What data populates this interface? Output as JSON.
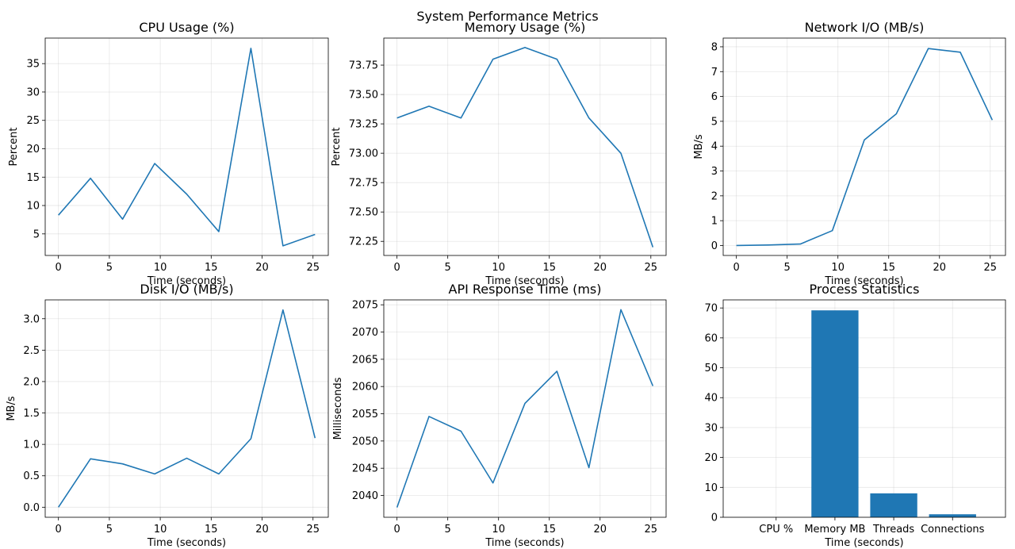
{
  "suptitle": "System Performance Metrics",
  "chart_data": [
    {
      "type": "line",
      "title": "CPU Usage (%)",
      "xlabel": "Time (seconds)",
      "ylabel": "Percent",
      "color": "#1f77b4",
      "x": [
        0,
        3.15,
        6.3,
        9.45,
        12.6,
        15.75,
        18.9,
        22.05,
        25.2
      ],
      "y": [
        8.3,
        14.8,
        7.6,
        17.4,
        12.0,
        5.4,
        37.7,
        2.9,
        4.9
      ],
      "xlim": [
        -1.3,
        26.5
      ],
      "ylim": [
        1.2,
        39.5
      ],
      "xticks": [
        0,
        5,
        10,
        15,
        20,
        25
      ],
      "yticks": [
        5,
        10,
        15,
        20,
        25,
        30,
        35
      ],
      "ytick_labels": [
        "5",
        "10",
        "15",
        "20",
        "25",
        "30",
        "35"
      ],
      "grid": true
    },
    {
      "type": "line",
      "title": "Memory Usage (%)",
      "xlabel": "Time (seconds)",
      "ylabel": "Percent",
      "color": "#1f77b4",
      "x": [
        0,
        3.15,
        6.3,
        9.45,
        12.6,
        15.75,
        18.9,
        22.05,
        25.2
      ],
      "y": [
        73.3,
        73.4,
        73.3,
        73.8,
        73.9,
        73.8,
        73.3,
        73.0,
        72.2
      ],
      "xlim": [
        -1.3,
        26.5
      ],
      "ylim": [
        72.13,
        73.98
      ],
      "xticks": [
        0,
        5,
        10,
        15,
        20,
        25
      ],
      "yticks": [
        72.25,
        72.5,
        72.75,
        73.0,
        73.25,
        73.5,
        73.75
      ],
      "ytick_labels": [
        "72.25",
        "72.50",
        "72.75",
        "73.00",
        "73.25",
        "73.50",
        "73.75"
      ],
      "grid": true
    },
    {
      "type": "line",
      "title": "Network I/O (MB/s)",
      "xlabel": "Time (seconds)",
      "ylabel": "MB/s",
      "color": "#1f77b4",
      "x": [
        0,
        3.15,
        6.3,
        9.45,
        12.6,
        15.75,
        18.9,
        22.05,
        25.2
      ],
      "y": [
        0.0,
        0.02,
        0.06,
        0.6,
        4.25,
        5.3,
        7.93,
        7.78,
        5.05
      ],
      "xlim": [
        -1.3,
        26.5
      ],
      "ylim": [
        -0.4,
        8.35
      ],
      "xticks": [
        0,
        5,
        10,
        15,
        20,
        25
      ],
      "yticks": [
        0,
        1,
        2,
        3,
        4,
        5,
        6,
        7,
        8
      ],
      "ytick_labels": [
        "0",
        "1",
        "2",
        "3",
        "4",
        "5",
        "6",
        "7",
        "8"
      ],
      "grid": true
    },
    {
      "type": "line",
      "title": "Disk I/O (MB/s)",
      "xlabel": "Time (seconds)",
      "ylabel": "MB/s",
      "color": "#1f77b4",
      "x": [
        0,
        3.15,
        6.3,
        9.45,
        12.6,
        15.75,
        18.9,
        22.05,
        25.2
      ],
      "y": [
        0.0,
        0.77,
        0.69,
        0.53,
        0.78,
        0.53,
        1.09,
        3.14,
        1.1
      ],
      "xlim": [
        -1.3,
        26.5
      ],
      "ylim": [
        -0.16,
        3.3
      ],
      "xticks": [
        0,
        5,
        10,
        15,
        20,
        25
      ],
      "yticks": [
        0.0,
        0.5,
        1.0,
        1.5,
        2.0,
        2.5,
        3.0
      ],
      "ytick_labels": [
        "0.0",
        "0.5",
        "1.0",
        "1.5",
        "2.0",
        "2.5",
        "3.0"
      ],
      "grid": true
    },
    {
      "type": "line",
      "title": "API Response Time (ms)",
      "xlabel": "Time (seconds)",
      "ylabel": "Milliseconds",
      "color": "#1f77b4",
      "x": [
        0,
        3.15,
        6.3,
        9.45,
        12.6,
        15.75,
        18.9,
        22.05,
        25.2
      ],
      "y": [
        2037.8,
        2054.5,
        2051.8,
        2042.3,
        2056.9,
        2062.8,
        2045.1,
        2074.1,
        2060.1
      ],
      "xlim": [
        -1.3,
        26.5
      ],
      "ylim": [
        2036.0,
        2075.9
      ],
      "xticks": [
        0,
        5,
        10,
        15,
        20,
        25
      ],
      "yticks": [
        2040,
        2045,
        2050,
        2055,
        2060,
        2065,
        2070,
        2075
      ],
      "ytick_labels": [
        "2040",
        "2045",
        "2050",
        "2055",
        "2060",
        "2065",
        "2070",
        "2075"
      ],
      "grid": true
    },
    {
      "type": "bar",
      "title": "Process Statistics",
      "xlabel": "Time (seconds)",
      "ylabel": "",
      "color": "#1f77b4",
      "categories": [
        "CPU %",
        "Memory MB",
        "Threads",
        "Connections"
      ],
      "values": [
        0,
        69.2,
        8,
        1
      ],
      "ylim": [
        0,
        72.7
      ],
      "yticks": [
        0,
        10,
        20,
        30,
        40,
        50,
        60,
        70
      ],
      "ytick_labels": [
        "0",
        "10",
        "20",
        "30",
        "40",
        "50",
        "60",
        "70"
      ],
      "grid": true
    }
  ]
}
